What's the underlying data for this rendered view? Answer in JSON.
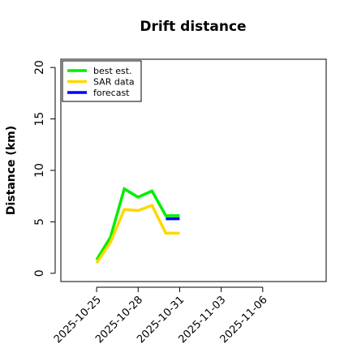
{
  "chart_data": {
    "type": "line",
    "title": "Drift distance",
    "y_label": "Distance (km)",
    "x": [
      "2025-10-25",
      "2025-10-26",
      "2025-10-27",
      "2025-10-28",
      "2025-10-29",
      "2025-10-30",
      "2025-10-31"
    ],
    "series": [
      {
        "name": "best est.",
        "color": "#00ee00",
        "values": [
          1.3,
          3.5,
          8.2,
          7.4,
          8.0,
          5.6,
          5.6
        ]
      },
      {
        "name": "SAR data",
        "color": "#ffd700",
        "values": [
          1.0,
          3.0,
          6.2,
          6.1,
          6.6,
          3.9,
          3.9
        ]
      },
      {
        "name": "forecast",
        "color": "#0000ff",
        "values": [
          null,
          null,
          null,
          null,
          null,
          5.3,
          5.3
        ]
      }
    ],
    "xlim": [
      "2025-10-22T10:00",
      "2025-11-10T14:00"
    ],
    "xticks": [
      "2025-10-25",
      "2025-10-28",
      "2025-10-31",
      "2025-11-03",
      "2025-11-06"
    ],
    "ylim": [
      -0.8,
      20.8
    ],
    "yticks": [
      0,
      5,
      10,
      15,
      20
    ],
    "grid": false,
    "legend": "top-left"
  }
}
